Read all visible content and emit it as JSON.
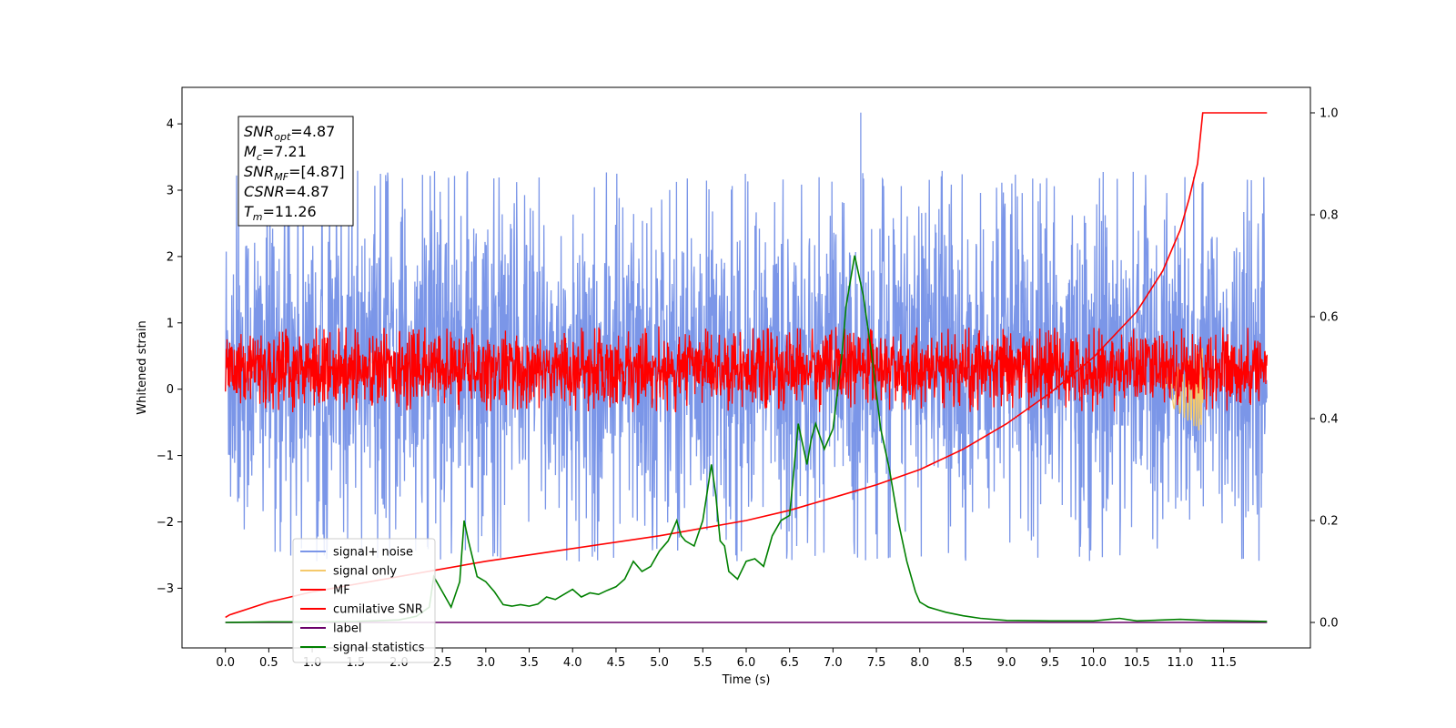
{
  "chart_data": {
    "type": "line",
    "xlabel": "Time (s)",
    "ylabel": "Whitened strain",
    "xlim": [
      -0.5,
      12.5
    ],
    "ylim": [
      -3.9,
      4.55
    ],
    "y2lim": [
      -0.05,
      1.05
    ],
    "grid": false,
    "legend_position": "lower-left",
    "x_ticks": [
      0.0,
      0.5,
      1.0,
      1.5,
      2.0,
      2.5,
      3.0,
      3.5,
      4.0,
      4.5,
      5.0,
      5.5,
      6.0,
      6.5,
      7.0,
      7.5,
      8.0,
      8.5,
      9.0,
      9.5,
      10.0,
      10.5,
      11.0,
      11.5
    ],
    "x_tick_labels": [
      "0.0",
      "0.5",
      "1.0",
      "1.5",
      "2.0",
      "2.5",
      "3.0",
      "3.5",
      "4.0",
      "4.5",
      "5.0",
      "5.5",
      "6.0",
      "6.5",
      "7.0",
      "7.5",
      "8.0",
      "8.5",
      "9.0",
      "9.5",
      "10.0",
      "10.5",
      "11.0",
      "11.5"
    ],
    "y_ticks": [
      -3,
      -2,
      -1,
      0,
      1,
      2,
      3,
      4
    ],
    "y_tick_labels": [
      "−3",
      "−2",
      "−1",
      "0",
      "1",
      "2",
      "3",
      "4"
    ],
    "y2_ticks": [
      0.0,
      0.2,
      0.4,
      0.6,
      0.8,
      1.0
    ],
    "y2_tick_labels": [
      "0.0",
      "0.2",
      "0.4",
      "0.6",
      "0.8",
      "1.0"
    ],
    "annotation": [
      {
        "base": "SNR",
        "sub": "opt",
        "value": "=4.87"
      },
      {
        "base": "M",
        "sub": "c",
        "value": "=7.21"
      },
      {
        "base": "SNR",
        "sub": "MF",
        "value": "=[4.87]"
      },
      {
        "base": "CSNR",
        "sub": "",
        "value": "=4.87"
      },
      {
        "base": "T",
        "sub": "m",
        "value": "=11.26"
      }
    ],
    "series": [
      {
        "name": "signal+ noise",
        "color": "#7b96e8",
        "axis": "left",
        "kind": "noise",
        "x_range": [
          0.0,
          12.0
        ],
        "envelope": [
          -2.6,
          3.3
        ],
        "peak": {
          "x": 7.32,
          "y": 4.17
        }
      },
      {
        "name": "signal only",
        "color": "#f5c96b",
        "axis": "left",
        "kind": "chirp",
        "x_range": [
          10.8,
          11.26
        ],
        "envelope": [
          -0.6,
          0.45
        ]
      },
      {
        "name": "MF",
        "color": "#ff0000",
        "axis": "left",
        "kind": "noise",
        "x_range": [
          0.0,
          12.0
        ],
        "envelope": [
          -0.35,
          0.95
        ]
      },
      {
        "name": "cumilative SNR",
        "color": "#ff0000",
        "axis": "right",
        "x": [
          0.0,
          0.05,
          0.5,
          1.0,
          2.0,
          3.0,
          4.0,
          5.0,
          6.0,
          6.5,
          7.0,
          7.5,
          8.0,
          8.5,
          9.0,
          9.5,
          10.0,
          10.5,
          10.8,
          11.0,
          11.1,
          11.2,
          11.26,
          12.0
        ],
        "y": [
          0.01,
          0.015,
          0.04,
          0.06,
          0.09,
          0.12,
          0.145,
          0.17,
          0.2,
          0.22,
          0.245,
          0.27,
          0.3,
          0.34,
          0.39,
          0.45,
          0.52,
          0.61,
          0.69,
          0.77,
          0.83,
          0.9,
          1.0,
          1.0
        ]
      },
      {
        "name": "label",
        "color": "#6a006a",
        "axis": "right",
        "x": [
          0.0,
          12.0
        ],
        "y": [
          0.0,
          0.0
        ]
      },
      {
        "name": "signal statistics",
        "color": "#008000",
        "axis": "right",
        "x": [
          0.0,
          0.5,
          1.0,
          1.5,
          2.0,
          2.2,
          2.35,
          2.4,
          2.5,
          2.6,
          2.7,
          2.75,
          2.8,
          2.9,
          3.0,
          3.1,
          3.2,
          3.3,
          3.4,
          3.5,
          3.6,
          3.7,
          3.8,
          3.9,
          4.0,
          4.1,
          4.2,
          4.3,
          4.4,
          4.5,
          4.6,
          4.7,
          4.8,
          4.9,
          5.0,
          5.1,
          5.2,
          5.25,
          5.3,
          5.4,
          5.5,
          5.6,
          5.65,
          5.7,
          5.75,
          5.8,
          5.9,
          6.0,
          6.1,
          6.2,
          6.3,
          6.4,
          6.5,
          6.6,
          6.7,
          6.75,
          6.8,
          6.9,
          7.0,
          7.1,
          7.15,
          7.25,
          7.35,
          7.45,
          7.55,
          7.65,
          7.75,
          7.85,
          7.95,
          8.0,
          8.1,
          8.2,
          8.3,
          8.5,
          8.7,
          9.0,
          9.5,
          10.0,
          10.3,
          10.5,
          11.0,
          11.3,
          12.0
        ],
        "y": [
          0.0,
          0.001,
          0.001,
          0.002,
          0.005,
          0.012,
          0.03,
          0.09,
          0.06,
          0.03,
          0.08,
          0.2,
          0.16,
          0.09,
          0.08,
          0.06,
          0.035,
          0.032,
          0.035,
          0.032,
          0.036,
          0.05,
          0.045,
          0.055,
          0.065,
          0.05,
          0.058,
          0.055,
          0.063,
          0.07,
          0.085,
          0.12,
          0.1,
          0.11,
          0.14,
          0.16,
          0.2,
          0.17,
          0.16,
          0.15,
          0.2,
          0.31,
          0.25,
          0.16,
          0.15,
          0.1,
          0.085,
          0.12,
          0.125,
          0.11,
          0.17,
          0.2,
          0.21,
          0.39,
          0.31,
          0.36,
          0.39,
          0.34,
          0.38,
          0.52,
          0.62,
          0.72,
          0.64,
          0.52,
          0.38,
          0.3,
          0.2,
          0.12,
          0.06,
          0.04,
          0.03,
          0.025,
          0.02,
          0.013,
          0.008,
          0.004,
          0.003,
          0.003,
          0.008,
          0.003,
          0.006,
          0.004,
          0.002
        ]
      }
    ]
  }
}
